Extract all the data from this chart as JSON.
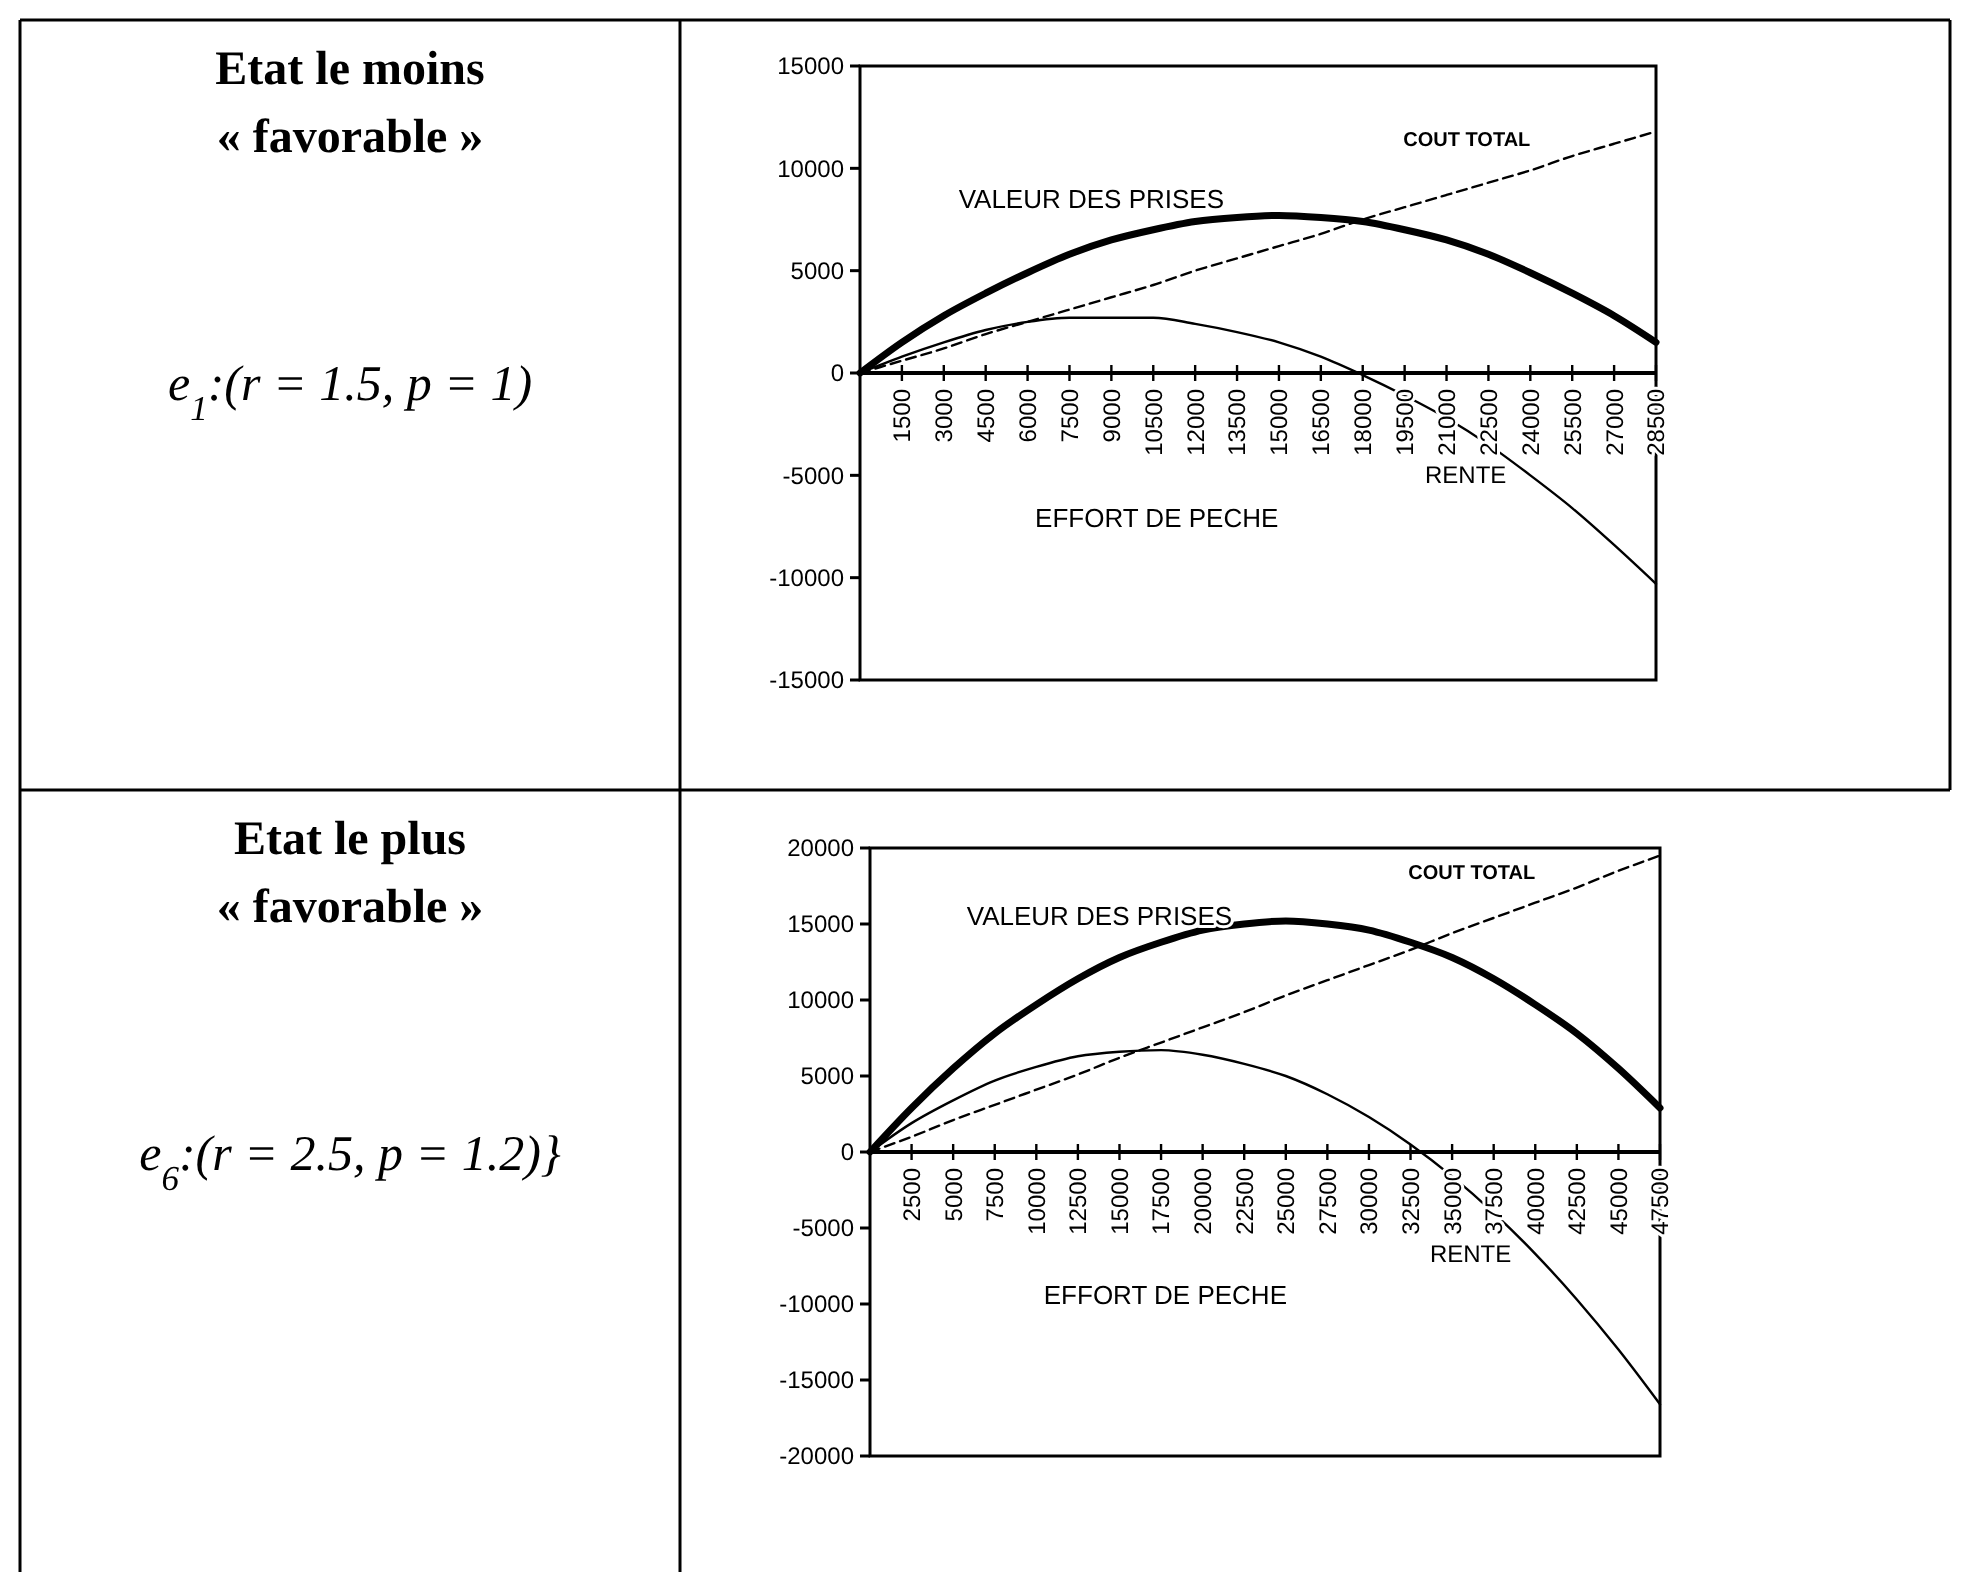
{
  "chart_data": [
    {
      "type": "other",
      "title": "Etat le moins « favorable »",
      "annotations": [
        "e$_{1}$:(r = 1.5, p = 1)"
      ]
    },
    {
      "type": "line",
      "xlabel": "EFFORT DE PECHE",
      "x": [
        0,
        1500,
        3000,
        4500,
        6000,
        7500,
        9000,
        10500,
        12000,
        13500,
        15000,
        16500,
        18000,
        19500,
        21000,
        22500,
        24000,
        25500,
        27000,
        28500
      ],
      "xlim": [
        0,
        28500
      ],
      "xticks": [
        1500,
        3000,
        4500,
        6000,
        7500,
        9000,
        10500,
        12000,
        13500,
        15000,
        16500,
        18000,
        19500,
        21000,
        22500,
        24000,
        25500,
        27000,
        28500
      ],
      "ylim": [
        -15000,
        15000
      ],
      "yticks": [
        -15000,
        -10000,
        -5000,
        0,
        5000,
        10000,
        15000
      ],
      "grid": false,
      "legend": false,
      "marker": "none",
      "series": [
        {
          "name": "VALEUR DES PRISES",
          "color": "#000000",
          "line_style": "solid",
          "values": [
            0,
            1500,
            2800,
            3900,
            4900,
            5800,
            6500,
            7000,
            7400,
            7600,
            7700,
            7600,
            7400,
            7000,
            6500,
            5800,
            4900,
            3900,
            2800,
            1500
          ]
        },
        {
          "name": "COUT TOTAL",
          "color": "#000000",
          "line_style": "dashed",
          "values": [
            0,
            600,
            1200,
            1900,
            2500,
            3100,
            3700,
            4300,
            5000,
            5600,
            6200,
            6800,
            7500,
            8100,
            8700,
            9300,
            9900,
            10600,
            11200,
            11800
          ]
        },
        {
          "name": "RENTE",
          "color": "#000000",
          "line_style": "solid",
          "values": [
            0,
            800,
            1500,
            2100,
            2500,
            2700,
            2700,
            2700,
            2400,
            2000,
            1500,
            800,
            -100,
            -1100,
            -2200,
            -3500,
            -5000,
            -6600,
            -8400,
            -10300
          ]
        }
      ]
    },
    {
      "type": "other",
      "title": "Etat le plus « favorable »",
      "annotations": [
        "e$_{6}$:(r = 2.5, p = 1.2)}"
      ]
    },
    {
      "type": "line",
      "xlabel": "EFFORT DE PECHE",
      "x": [
        0,
        2500,
        5000,
        7500,
        10000,
        12500,
        15000,
        17500,
        20000,
        22500,
        25000,
        27500,
        30000,
        32500,
        35000,
        37500,
        40000,
        42500,
        45000,
        47500
      ],
      "xlim": [
        0,
        47500
      ],
      "xticks": [
        2500,
        5000,
        7500,
        10000,
        12500,
        15000,
        17500,
        20000,
        22500,
        25000,
        27500,
        30000,
        32500,
        35000,
        37500,
        40000,
        42500,
        45000,
        47500
      ],
      "ylim": [
        -20000,
        20000
      ],
      "yticks": [
        -20000,
        -15000,
        -10000,
        -5000,
        0,
        5000,
        10000,
        15000,
        20000
      ],
      "grid": false,
      "legend": false,
      "marker": "none",
      "series": [
        {
          "name": "VALEUR DES PRISES",
          "color": "#000000",
          "line_style": "solid",
          "values": [
            0,
            2900,
            5500,
            7800,
            9700,
            11400,
            12800,
            13800,
            14600,
            15000,
            15200,
            15000,
            14600,
            13800,
            12800,
            11400,
            9700,
            7800,
            5500,
            2900
          ]
        },
        {
          "name": "COUT TOTAL",
          "color": "#000000",
          "line_style": "dashed",
          "values": [
            0,
            1000,
            2100,
            3100,
            4100,
            5100,
            6200,
            7200,
            8200,
            9200,
            10300,
            11300,
            12300,
            13300,
            14400,
            15400,
            16400,
            17400,
            18500,
            19500
          ]
        },
        {
          "name": "RENTE",
          "color": "#000000",
          "line_style": "solid",
          "values": [
            0,
            1900,
            3400,
            4700,
            5600,
            6300,
            6600,
            6700,
            6400,
            5800,
            5000,
            3800,
            2300,
            500,
            -1600,
            -4000,
            -6700,
            -9700,
            -13000,
            -16600
          ]
        }
      ]
    }
  ]
}
